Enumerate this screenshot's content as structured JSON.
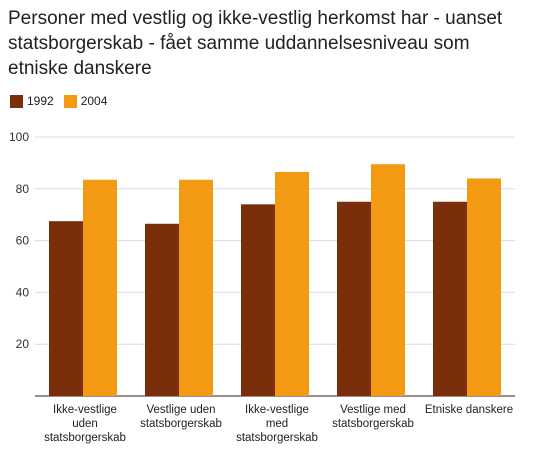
{
  "chart_data": {
    "type": "bar",
    "title": "Personer med vestlig og ikke-vestlig herkomst har - uanset statsborgerskab - fået samme uddannelsesniveau som etniske danskere",
    "categories": [
      [
        "Ikke-vestlige",
        "uden",
        "statsborgerskab"
      ],
      [
        "Vestlige uden",
        "statsborgerskab"
      ],
      [
        "Ikke-vestlige",
        "med",
        "statsborgerskab"
      ],
      [
        "Vestlige med",
        "statsborgerskab"
      ],
      [
        "Etniske danskere"
      ]
    ],
    "series": [
      {
        "name": "1992",
        "color": "#7a2e0a",
        "values": [
          67.5,
          66.5,
          74,
          75,
          75
        ]
      },
      {
        "name": "2004",
        "color": "#f39a12",
        "values": [
          83.5,
          83.5,
          86.5,
          89.5,
          84
        ]
      }
    ],
    "yticks": [
      20,
      40,
      60,
      80,
      100
    ],
    "ylim": [
      0,
      100
    ],
    "grid": true,
    "legend": "top-left"
  }
}
